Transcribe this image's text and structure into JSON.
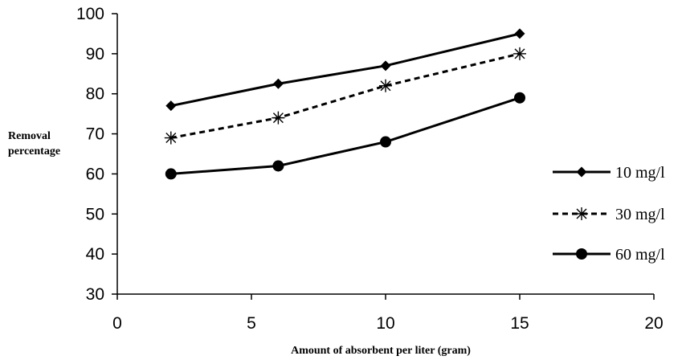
{
  "chart_data": {
    "type": "line",
    "xlabel": "Amount of absorbent per liter (gram)",
    "ylabel": [
      "Removal",
      "percentage"
    ],
    "xlim": [
      0,
      20
    ],
    "ylim": [
      30,
      100
    ],
    "xticks": [
      "0",
      "5",
      "10",
      "15",
      "20"
    ],
    "yticks": [
      "30",
      "40",
      "50",
      "60",
      "70",
      "80",
      "90",
      "100"
    ],
    "x": [
      2,
      6,
      10,
      15
    ],
    "series": [
      {
        "name": "10 mg/l",
        "values": [
          77,
          82.5,
          87,
          95
        ],
        "marker": "diamond",
        "dash": "solid"
      },
      {
        "name": "30 mg/l",
        "values": [
          69,
          74,
          82,
          90
        ],
        "marker": "asterisk",
        "dash": "dashed"
      },
      {
        "name": "60 mg/l",
        "values": [
          60,
          62,
          68,
          79
        ],
        "marker": "circle",
        "dash": "solid"
      }
    ],
    "grid": false,
    "legend": "right"
  }
}
